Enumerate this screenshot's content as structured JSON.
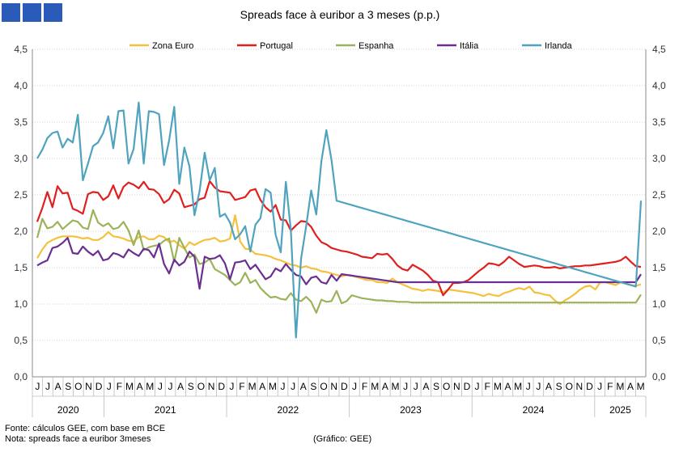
{
  "colors": {
    "zona_euro": "#f5c03c",
    "portugal": "#e02020",
    "espanha": "#9bb35a",
    "italia": "#6a2f8f",
    "irlanda": "#4fa3bf",
    "logo": "#2a5bb8"
  },
  "logo_icon": "three-blue-squares-logo",
  "footer": {
    "source": "Fonte: cálculos GEE, com base em BCE",
    "note": "Nota: spreads face a euribor 3meses",
    "credit": "(Gráfico: GEE)"
  },
  "chart_data": {
    "type": "line",
    "title": "Spreads face à euribor a 3 meses (p.p.)",
    "xlabel": "",
    "ylabel": "",
    "ylim": [
      0,
      4.5
    ],
    "yticks": [
      "0,0",
      "0,5",
      "1,0",
      "1,5",
      "2,0",
      "2,5",
      "3,0",
      "3,5",
      "4,0",
      "4,5"
    ],
    "grid": true,
    "legend_position": "top",
    "month_labels": [
      "J",
      "J",
      "A",
      "S",
      "O",
      "N",
      "D",
      "J",
      "F",
      "M",
      "A",
      "M",
      "J",
      "J",
      "A",
      "S",
      "O",
      "N",
      "D",
      "J",
      "F",
      "M",
      "A",
      "M",
      "J",
      "J",
      "A",
      "S",
      "O",
      "N",
      "D",
      "J",
      "F",
      "M",
      "A",
      "M",
      "J",
      "J",
      "A",
      "S",
      "O",
      "N",
      "D",
      "J",
      "F",
      "M",
      "A",
      "M",
      "J",
      "J",
      "A",
      "S",
      "O",
      "N",
      "D",
      "J",
      "F",
      "M",
      "A",
      "M"
    ],
    "year_groups": [
      {
        "label": "2020",
        "months": 7
      },
      {
        "label": "2021",
        "months": 12
      },
      {
        "label": "2022",
        "months": 12
      },
      {
        "label": "2023",
        "months": 12
      },
      {
        "label": "2024",
        "months": 12
      },
      {
        "label": "2025",
        "months": 5
      }
    ],
    "points_per_series": 120,
    "series": [
      {
        "key": "zona_euro",
        "name": "Zona Euro",
        "values": [
          1.63,
          1.75,
          1.84,
          1.88,
          1.91,
          1.93,
          1.93,
          1.93,
          1.92,
          1.9,
          1.91,
          1.88,
          1.88,
          1.92,
          1.99,
          1.93,
          1.92,
          1.9,
          1.87,
          1.86,
          1.92,
          1.93,
          1.89,
          1.89,
          1.94,
          1.92,
          1.85,
          1.87,
          1.81,
          1.76,
          1.85,
          1.81,
          1.85,
          1.88,
          1.89,
          1.91,
          1.86,
          1.87,
          1.9,
          2.22,
          1.86,
          1.76,
          1.75,
          1.69,
          1.68,
          1.67,
          1.65,
          1.62,
          1.6,
          1.57,
          1.54,
          1.53,
          1.5,
          1.52,
          1.49,
          1.48,
          1.45,
          1.44,
          1.42,
          1.4,
          1.38,
          1.4,
          1.39,
          1.37,
          1.35,
          1.33,
          1.33,
          1.3,
          1.3,
          1.29,
          1.35,
          1.3,
          1.27,
          1.24,
          1.21,
          1.2,
          1.18,
          1.2,
          1.19,
          1.18,
          1.16,
          1.2,
          1.19,
          1.18,
          1.17,
          1.16,
          1.15,
          1.13,
          1.11,
          1.14,
          1.12,
          1.11,
          1.15,
          1.17,
          1.2,
          1.22,
          1.2,
          1.24,
          1.16,
          1.15,
          1.13,
          1.12,
          1.05,
          1.0,
          1.05,
          1.09,
          1.14,
          1.2,
          1.24,
          1.25,
          1.2,
          1.3,
          1.3,
          1.28,
          1.26,
          1.3,
          1.28,
          1.26,
          1.25,
          1.27
        ]
      },
      {
        "key": "portugal",
        "name": "Portugal",
        "values": [
          2.13,
          2.32,
          2.54,
          2.33,
          2.62,
          2.52,
          2.53,
          2.31,
          2.28,
          2.24,
          2.51,
          2.54,
          2.53,
          2.43,
          2.48,
          2.63,
          2.45,
          2.61,
          2.67,
          2.64,
          2.59,
          2.68,
          2.58,
          2.57,
          2.51,
          2.39,
          2.44,
          2.57,
          2.52,
          2.33,
          2.35,
          2.37,
          2.44,
          2.46,
          2.69,
          2.6,
          2.55,
          2.54,
          2.53,
          2.43,
          2.45,
          2.47,
          2.56,
          2.58,
          2.43,
          2.33,
          2.27,
          2.36,
          2.16,
          2.15,
          2.01,
          2.08,
          2.14,
          2.13,
          2.06,
          1.94,
          1.85,
          1.82,
          1.77,
          1.75,
          1.73,
          1.72,
          1.7,
          1.68,
          1.65,
          1.64,
          1.63,
          1.69,
          1.68,
          1.69,
          1.62,
          1.53,
          1.48,
          1.46,
          1.54,
          1.5,
          1.46,
          1.4,
          1.32,
          1.3,
          1.12,
          1.2,
          1.29,
          1.29,
          1.3,
          1.33,
          1.39,
          1.45,
          1.5,
          1.56,
          1.55,
          1.53,
          1.58,
          1.65,
          1.6,
          1.55,
          1.51,
          1.52,
          1.53,
          1.52,
          1.5,
          1.5,
          1.51,
          1.49,
          1.5,
          1.51,
          1.52,
          1.52,
          1.53,
          1.53,
          1.54,
          1.55,
          1.56,
          1.57,
          1.58,
          1.6,
          1.65,
          1.58,
          1.52,
          1.51
        ]
      },
      {
        "key": "espanha",
        "name": "Espanha",
        "values": [
          1.91,
          2.17,
          2.04,
          2.06,
          2.13,
          2.03,
          2.09,
          2.15,
          2.13,
          2.05,
          2.03,
          2.29,
          2.12,
          2.07,
          2.11,
          2.03,
          2.05,
          2.13,
          2.01,
          1.81,
          2.01,
          1.74,
          1.78,
          1.8,
          1.81,
          1.87,
          1.9,
          1.58,
          1.91,
          1.77,
          1.64,
          1.68,
          1.55,
          1.57,
          1.62,
          1.48,
          1.44,
          1.4,
          1.33,
          1.26,
          1.3,
          1.43,
          1.29,
          1.33,
          1.22,
          1.15,
          1.09,
          1.1,
          1.07,
          1.06,
          1.15,
          1.06,
          1.04,
          1.1,
          1.03,
          0.88,
          1.06,
          1.03,
          1.04,
          1.18,
          1.01,
          1.04,
          1.12,
          1.1,
          1.08,
          1.07,
          1.06,
          1.05,
          1.05,
          1.04,
          1.04,
          1.03,
          1.03,
          1.03,
          1.02,
          1.02,
          1.02,
          1.02,
          1.02,
          1.02,
          1.02,
          1.02,
          1.02,
          1.02,
          1.02,
          1.02,
          1.02,
          1.02,
          1.02,
          1.02,
          1.02,
          1.02,
          1.02,
          1.02,
          1.02,
          1.02,
          1.02,
          1.02,
          1.02,
          1.02,
          1.02,
          1.02,
          1.02,
          1.02,
          1.02,
          1.02,
          1.02,
          1.02,
          1.02,
          1.02,
          1.02,
          1.02,
          1.02,
          1.02,
          1.02,
          1.02,
          1.02,
          1.02,
          1.02,
          1.13
        ]
      },
      {
        "key": "italia",
        "name": "Itália",
        "values": [
          1.53,
          1.57,
          1.6,
          1.77,
          1.79,
          1.84,
          1.91,
          1.7,
          1.69,
          1.79,
          1.72,
          1.67,
          1.73,
          1.6,
          1.62,
          1.7,
          1.68,
          1.64,
          1.75,
          1.7,
          1.66,
          1.76,
          1.74,
          1.64,
          1.83,
          1.55,
          1.42,
          1.61,
          1.53,
          1.58,
          1.72,
          1.65,
          1.21,
          1.65,
          1.62,
          1.63,
          1.67,
          1.56,
          1.34,
          1.57,
          1.58,
          1.6,
          1.48,
          1.54,
          1.44,
          1.34,
          1.38,
          1.49,
          1.45,
          1.55,
          1.47,
          1.4,
          1.38,
          1.27,
          1.36,
          1.38,
          1.3,
          1.28,
          1.4,
          1.32,
          1.41,
          1.4,
          1.39,
          1.38,
          1.37,
          1.36,
          1.35,
          1.34,
          1.33,
          1.32,
          1.31,
          1.3,
          1.3,
          1.3,
          1.3,
          1.3,
          1.3,
          1.3,
          1.3,
          1.3,
          1.3,
          1.3,
          1.3,
          1.3,
          1.3,
          1.3,
          1.3,
          1.3,
          1.3,
          1.3,
          1.3,
          1.3,
          1.3,
          1.3,
          1.3,
          1.3,
          1.3,
          1.3,
          1.3,
          1.3,
          1.3,
          1.3,
          1.3,
          1.3,
          1.3,
          1.3,
          1.3,
          1.3,
          1.3,
          1.3,
          1.3,
          1.3,
          1.3,
          1.3,
          1.3,
          1.3,
          1.3,
          1.3,
          1.3,
          1.41
        ]
      },
      {
        "key": "irlanda",
        "name": "Irlanda",
        "values": [
          3.0,
          3.12,
          3.28,
          3.35,
          3.37,
          3.15,
          3.27,
          3.22,
          3.6,
          2.7,
          2.93,
          3.17,
          3.22,
          3.35,
          3.58,
          3.14,
          3.65,
          3.66,
          2.93,
          3.13,
          3.77,
          2.93,
          3.65,
          3.64,
          3.61,
          2.91,
          3.25,
          3.71,
          2.65,
          3.15,
          2.89,
          2.22,
          2.55,
          3.08,
          2.7,
          2.87,
          2.2,
          2.24,
          2.12,
          1.89,
          1.96,
          2.07,
          1.72,
          2.09,
          2.18,
          2.58,
          2.53,
          1.95,
          1.71,
          2.68,
          2.01,
          0.54,
          1.62,
          2.07,
          2.56,
          2.23,
          2.96,
          3.39,
          2.98,
          2.42,
          2.4,
          2.38,
          2.36,
          2.34,
          2.32,
          2.3,
          2.28,
          2.26,
          2.24,
          2.22,
          2.2,
          2.18,
          2.16,
          2.14,
          2.12,
          2.1,
          2.08,
          2.06,
          2.04,
          2.02,
          2.0,
          1.98,
          1.96,
          1.94,
          1.92,
          1.9,
          1.88,
          1.86,
          1.84,
          1.82,
          1.8,
          1.78,
          1.76,
          1.74,
          1.72,
          1.7,
          1.68,
          1.66,
          1.64,
          1.62,
          1.6,
          1.58,
          1.56,
          1.54,
          1.52,
          1.5,
          1.48,
          1.46,
          1.44,
          1.42,
          1.4,
          1.38,
          1.36,
          1.34,
          1.32,
          1.3,
          1.28,
          1.26,
          1.24,
          2.42
        ]
      }
    ]
  }
}
